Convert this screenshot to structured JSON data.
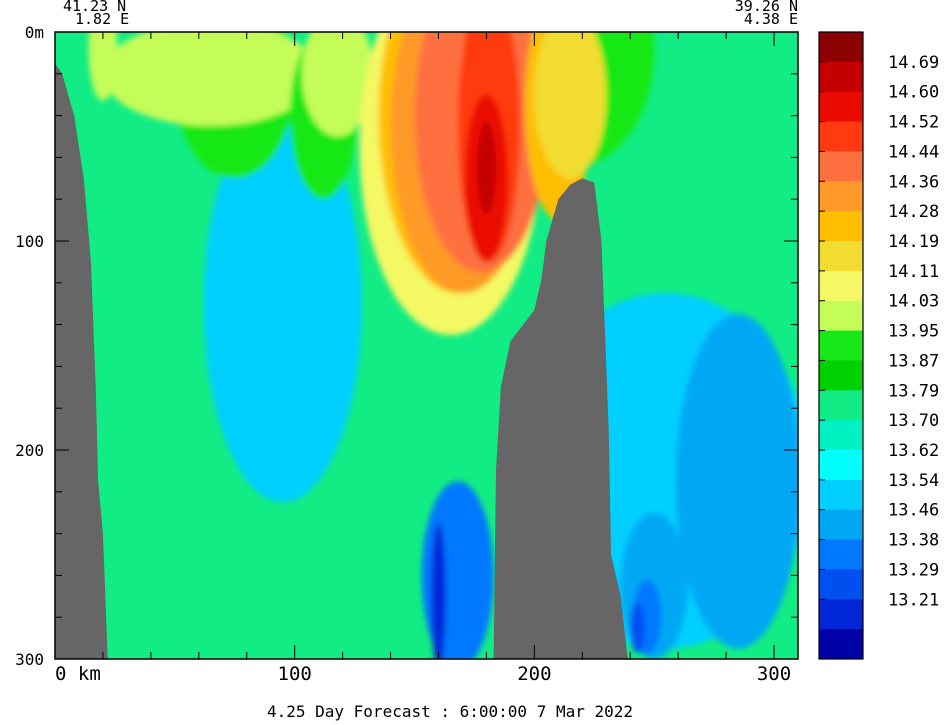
{
  "chart_data": {
    "type": "heatmap",
    "title": "4.25 Day Forecast :  6:00:00   7 Mar 2022",
    "start_point": {
      "lat": "41.23 N",
      "lon": "1.82 E"
    },
    "end_point": {
      "lat": "39.26 N",
      "lon": "4.38 E"
    },
    "xlabel": "km",
    "x_range": [
      0,
      310
    ],
    "x_ticks": [
      {
        "value": 0,
        "label": "0 km"
      },
      {
        "value": 100,
        "label": "100"
      },
      {
        "value": 200,
        "label": "200"
      },
      {
        "value": 300,
        "label": "300"
      }
    ],
    "y_range": [
      0,
      300
    ],
    "y_reversed": true,
    "y_ticks": [
      {
        "value": 0,
        "label": "0m"
      },
      {
        "value": 100,
        "label": "100"
      },
      {
        "value": 200,
        "label": "200"
      },
      {
        "value": 300,
        "label": "300"
      }
    ],
    "colorbar": {
      "labels": [
        "14.69",
        "14.60",
        "14.52",
        "14.44",
        "14.36",
        "14.28",
        "14.19",
        "14.11",
        "14.03",
        "13.95",
        "13.87",
        "13.79",
        "13.70",
        "13.62",
        "13.54",
        "13.46",
        "13.38",
        "13.29",
        "13.21"
      ],
      "colors": [
        "#8b0000",
        "#c40000",
        "#ea0a00",
        "#ff3a10",
        "#ff7040",
        "#ff9a28",
        "#ffbe00",
        "#f2dc30",
        "#f4f864",
        "#c4fc58",
        "#18e818",
        "#00d000",
        "#12ec84",
        "#00f2c2",
        "#00ffff",
        "#00cfff",
        "#00a8f4",
        "#0078ff",
        "#0050f0",
        "#0026d8",
        "#0000a8"
      ]
    },
    "bathymetry": [
      {
        "x": 0,
        "depth": 15
      },
      {
        "x": 3,
        "depth": 20
      },
      {
        "x": 8,
        "depth": 40
      },
      {
        "x": 12,
        "depth": 70
      },
      {
        "x": 15,
        "depth": 110
      },
      {
        "x": 17,
        "depth": 170
      },
      {
        "x": 18,
        "depth": 215
      },
      {
        "x": 20,
        "depth": 240
      },
      {
        "x": 21,
        "depth": 270
      },
      {
        "x": 22,
        "depth": 300
      },
      {
        "x": 183,
        "depth": 300
      },
      {
        "x": 184,
        "depth": 210
      },
      {
        "x": 186,
        "depth": 170
      },
      {
        "x": 190,
        "depth": 148
      },
      {
        "x": 200,
        "depth": 133
      },
      {
        "x": 203,
        "depth": 118
      },
      {
        "x": 205,
        "depth": 100
      },
      {
        "x": 210,
        "depth": 80
      },
      {
        "x": 215,
        "depth": 73
      },
      {
        "x": 220,
        "depth": 70
      },
      {
        "x": 225,
        "depth": 72
      },
      {
        "x": 228,
        "depth": 100
      },
      {
        "x": 231,
        "depth": 190
      },
      {
        "x": 232,
        "depth": 250
      },
      {
        "x": 236,
        "depth": 270
      },
      {
        "x": 239,
        "depth": 300
      }
    ],
    "field_regions": [
      {
        "level": 13.54,
        "x": 95,
        "depth": 130,
        "rx": 33,
        "ry": 95
      },
      {
        "level": 13.54,
        "x": 255,
        "depth": 210,
        "rx": 60,
        "ry": 85
      },
      {
        "level": 13.46,
        "x": 285,
        "depth": 215,
        "rx": 26,
        "ry": 80
      },
      {
        "level": 13.46,
        "x": 250,
        "depth": 265,
        "rx": 14,
        "ry": 35
      },
      {
        "level": 13.38,
        "x": 168,
        "depth": 260,
        "rx": 15,
        "ry": 45
      },
      {
        "level": 13.38,
        "x": 247,
        "depth": 280,
        "rx": 6,
        "ry": 18
      },
      {
        "level": 13.21,
        "x": 160,
        "depth": 270,
        "rx": 3,
        "ry": 35
      },
      {
        "level": 13.29,
        "x": 243,
        "depth": 285,
        "rx": 3,
        "ry": 12
      },
      {
        "level": 13.95,
        "x": 75,
        "depth": 25,
        "rx": 25,
        "ry": 45
      },
      {
        "level": 14.03,
        "x": 65,
        "depth": 20,
        "rx": 45,
        "ry": 25
      },
      {
        "level": 14.03,
        "x": 20,
        "depth": 8,
        "rx": 6,
        "ry": 25
      },
      {
        "level": 13.95,
        "x": 112,
        "depth": 40,
        "rx": 14,
        "ry": 40
      },
      {
        "level": 14.03,
        "x": 118,
        "depth": 20,
        "rx": 15,
        "ry": 30
      },
      {
        "level": 13.95,
        "x": 215,
        "depth": 10,
        "rx": 35,
        "ry": 55
      },
      {
        "level": 14.11,
        "x": 165,
        "depth": 55,
        "rx": 38,
        "ry": 90
      },
      {
        "level": 14.28,
        "x": 168,
        "depth": 40,
        "rx": 33,
        "ry": 85
      },
      {
        "level": 14.36,
        "x": 170,
        "depth": 45,
        "rx": 30,
        "ry": 80
      },
      {
        "level": 14.44,
        "x": 178,
        "depth": 40,
        "rx": 28,
        "ry": 75
      },
      {
        "level": 14.52,
        "x": 181,
        "depth": 45,
        "rx": 13,
        "ry": 65
      },
      {
        "level": 14.6,
        "x": 180,
        "depth": 70,
        "rx": 9,
        "ry": 40
      },
      {
        "level": 14.69,
        "x": 180,
        "depth": 65,
        "rx": 4,
        "ry": 22
      },
      {
        "level": 14.28,
        "x": 210,
        "depth": 35,
        "rx": 14,
        "ry": 55
      },
      {
        "level": 14.19,
        "x": 215,
        "depth": 30,
        "rx": 15,
        "ry": 40
      }
    ]
  }
}
